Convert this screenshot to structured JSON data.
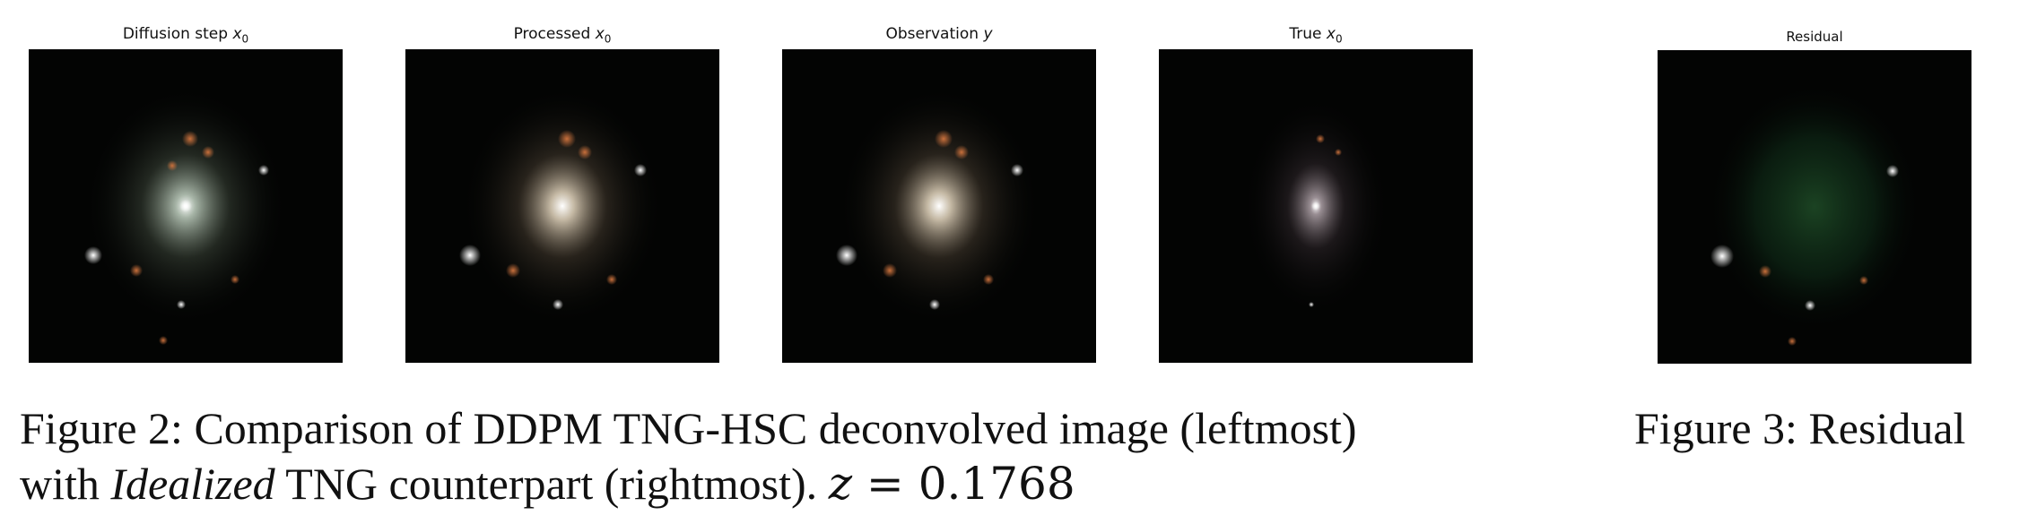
{
  "panels": [
    {
      "title_prefix": "Diffusion step ",
      "title_var": "x",
      "title_sub": "0"
    },
    {
      "title_prefix": "Processed ",
      "title_var": "x",
      "title_sub": "0"
    },
    {
      "title_prefix": "Observation ",
      "title_var": "y",
      "title_sub": ""
    },
    {
      "title_prefix": "True ",
      "title_var": "x",
      "title_sub": "0"
    },
    {
      "title_prefix": "Residual",
      "title_var": "",
      "title_sub": ""
    }
  ],
  "figure2": {
    "label": "Figure 2:",
    "line1": "Comparison of DDPM TNG-HSC deconvolved image (leftmost)",
    "line2_pre": "with ",
    "line2_em": "Idealized",
    "line2_post": " TNG counterpart (rightmost). ",
    "math_var": "z",
    "math_eq": " = 0.1768"
  },
  "figure3": {
    "label": "Figure 3:",
    "text": "Residual"
  }
}
